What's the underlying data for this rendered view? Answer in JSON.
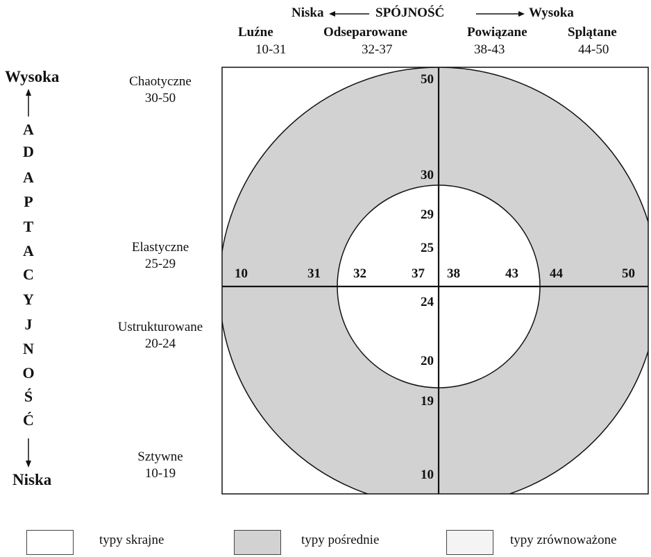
{
  "cohesion": {
    "low": "Niska",
    "title": "SPÓJNOŚĆ",
    "high": "Wysoka",
    "columns": [
      {
        "name": "Luźne",
        "range": "10-31"
      },
      {
        "name": "Odseparowane",
        "range": "32-37"
      },
      {
        "name": "Powiązane",
        "range": "38-43"
      },
      {
        "name": "Splątane",
        "range": "44-50"
      }
    ]
  },
  "adaptability": {
    "high": "Wysoka",
    "low": "Niska",
    "letters": [
      "A",
      "D",
      "A",
      "P",
      "T",
      "A",
      "C",
      "Y",
      "J",
      "N",
      "O",
      "Ś",
      "Ć"
    ],
    "rows": [
      {
        "name": "Chaotyczne",
        "range": "30-50"
      },
      {
        "name": "Elastyczne",
        "range": "25-29"
      },
      {
        "name": "Ustrukturowane",
        "range": "20-24"
      },
      {
        "name": "Sztywne",
        "range": "10-19"
      }
    ]
  },
  "diagram": {
    "vertical_labels": [
      "50",
      "30",
      "29",
      "25",
      "24",
      "20",
      "19",
      "10"
    ],
    "horizontal_labels": [
      "10",
      "31",
      "32",
      "37",
      "38",
      "43",
      "44",
      "50"
    ]
  },
  "legend": [
    {
      "label": "typy  skrajne",
      "fill": "#ffffff"
    },
    {
      "label": "typy pośrednie",
      "fill": "#d2d2d2"
    },
    {
      "label": "typy zrównoważone",
      "fill": "#f4f4f4"
    }
  ],
  "colors": {
    "outer": "#ffffff",
    "middle": "#d2d2d2",
    "inner": "#ffffff",
    "lines": "#111111"
  }
}
